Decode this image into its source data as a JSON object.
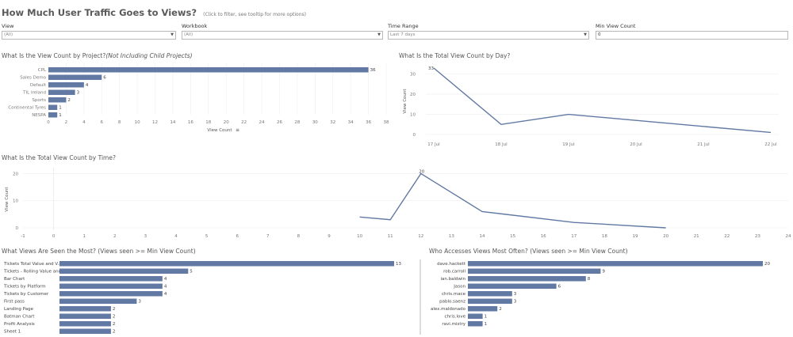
{
  "page": {
    "title": "How Much User Traffic Goes to Views?",
    "subtitle": "(Click to filter, see tooltip for more options)"
  },
  "filters": [
    {
      "label": "View",
      "value": "(All)",
      "type": "dropdown"
    },
    {
      "label": "Workbook",
      "value": "(All)",
      "type": "dropdown"
    },
    {
      "label": "Time Range",
      "value": "Last 7 days",
      "type": "dropdown"
    },
    {
      "label": "Min View Count",
      "value": "0",
      "type": "input"
    }
  ],
  "colors": {
    "bar": "#6179a3",
    "line": "#6179a3",
    "grid": "#eeeeee",
    "axis_text": "#777777"
  },
  "panels": {
    "project": {
      "title": "What Is the View Count by Project?",
      "title_note": "(Not Including Child Projects)"
    },
    "day": {
      "title": "What Is the Total View Count by Day?"
    },
    "time": {
      "title": "What Is the Total View Count by Time?"
    },
    "seen": {
      "title": "What Views Are Seen the Most? (Views seen >= Min View Count)"
    },
    "users": {
      "title": "Who Accesses Views Most Often? (Views seen >= Min View Count)"
    }
  },
  "chart_data": [
    {
      "type": "bar",
      "orientation": "horizontal",
      "categories": [
        "CPL",
        "Sales Demo",
        "Default",
        "TIL Ireland",
        "Sports",
        "Continental Tyres",
        "NESPA"
      ],
      "values": [
        36,
        6,
        4,
        3,
        2,
        1,
        1
      ],
      "xlabel": "View Count",
      "xlim": [
        0,
        38
      ],
      "xticks": [
        0,
        2,
        4,
        6,
        8,
        10,
        12,
        14,
        16,
        18,
        20,
        22,
        24,
        26,
        28,
        30,
        32,
        34,
        36,
        38
      ]
    },
    {
      "type": "line",
      "x": [
        "17 Jul",
        "18 Jul",
        "19 Jul",
        "20 Jul",
        "21 Jul",
        "22 Jul"
      ],
      "points": [
        [
          0,
          33
        ],
        [
          1,
          5
        ],
        [
          2,
          10
        ],
        [
          3,
          7
        ],
        [
          4,
          4
        ],
        [
          5,
          1
        ]
      ],
      "point_labels": [
        {
          "index": 0,
          "text": "33"
        }
      ],
      "ylabel": "View Count",
      "ylim": [
        0,
        33
      ],
      "yticks": [
        0,
        10,
        20,
        30
      ]
    },
    {
      "type": "line",
      "points": [
        [
          10,
          4
        ],
        [
          11,
          3
        ],
        [
          12,
          20
        ],
        [
          13,
          13
        ],
        [
          14,
          6
        ],
        [
          17,
          2
        ],
        [
          20,
          0
        ]
      ],
      "point_labels": [
        {
          "index": 2,
          "text": "20"
        }
      ],
      "ylabel": "View Count",
      "xlim": [
        -1,
        24
      ],
      "ylim": [
        0,
        21
      ],
      "xticks": [
        -1,
        0,
        1,
        2,
        3,
        4,
        5,
        6,
        7,
        8,
        9,
        10,
        11,
        12,
        13,
        14,
        15,
        16,
        17,
        18,
        19,
        20,
        21,
        22,
        23,
        24
      ],
      "yticks": [
        0,
        10,
        20
      ]
    },
    {
      "type": "bar",
      "orientation": "horizontal",
      "categories": [
        "Tickets Total Value and V...",
        "Tickets - Rolling Value and",
        "Bar Chart",
        "Tickets by Platform",
        "Tickets by Customer",
        "First pass",
        "Landing Page",
        "Batman Chart",
        "Profit Analysis",
        "Sheet 1"
      ],
      "values": [
        13,
        5,
        4,
        4,
        4,
        3,
        2,
        2,
        2,
        2
      ],
      "xlim": [
        0,
        13
      ]
    },
    {
      "type": "bar",
      "orientation": "horizontal",
      "categories": [
        "dave.hackett",
        "rob.carroll",
        "ian.baldwin",
        "Jason",
        "chris.mace",
        "pablo.saenz",
        "alex.maldonado",
        "chris.love",
        "ravi.mistry"
      ],
      "values": [
        20,
        9,
        8,
        6,
        3,
        3,
        2,
        1,
        1
      ],
      "xlim": [
        0,
        20
      ]
    }
  ]
}
